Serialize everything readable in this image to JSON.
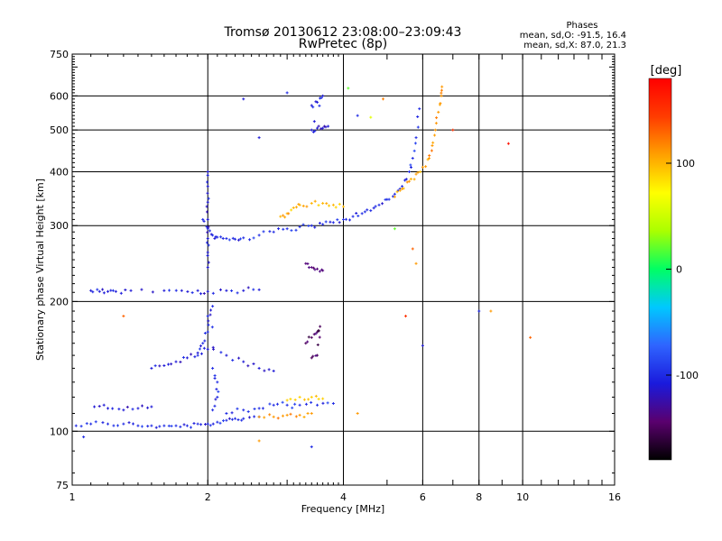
{
  "chart_data": {
    "type": "scatter",
    "title": "Tromsø 20130612 23:08:00–23:09:43",
    "subtitle": "RwPretec (8p)",
    "xlabel": "Frequency [MHz]",
    "ylabel": "Stationary phase Virtual Height [km]",
    "x_scale": "log",
    "y_scale": "log",
    "xlim": [
      1,
      16
    ],
    "ylim": [
      75,
      750
    ],
    "grid": true,
    "x_ticks": [
      "1",
      "2",
      "4",
      "6",
      "8",
      "10",
      "16"
    ],
    "y_ticks": [
      "75",
      "100",
      "200",
      "300",
      "400",
      "500",
      "600",
      "750"
    ],
    "stats": {
      "heading": "Phases",
      "line1": "mean, sd,O: -91.5, 16.4",
      "line2": "mean, sd,X:  87.0, 21.3"
    },
    "colorbar": {
      "unit": "[deg]",
      "range": [
        -180,
        180
      ],
      "ticks": [
        "100",
        "0",
        "-100"
      ],
      "colors": [
        "#000000",
        "#5a006e",
        "#1a1adc",
        "#2f64ff",
        "#00c8ff",
        "#00ff64",
        "#aaff00",
        "#ffff00",
        "#ffa000",
        "#ff3c00",
        "#ff0000"
      ]
    },
    "traces": [
      {
        "name": "",
        "phase": -100,
        "points": [
          [
            1.02,
            103
          ],
          [
            1.1,
            104
          ],
          [
            1.2,
            104
          ],
          [
            1.3,
            104
          ],
          [
            1.4,
            103
          ],
          [
            1.5,
            103
          ],
          [
            1.6,
            103
          ],
          [
            1.7,
            103
          ],
          [
            1.8,
            103
          ],
          [
            1.9,
            104
          ],
          [
            2.0,
            104
          ],
          [
            2.1,
            105
          ],
          [
            2.2,
            106
          ],
          [
            2.3,
            107
          ],
          [
            2.4,
            107
          ],
          [
            2.6,
            108
          ]
        ]
      },
      {
        "name": "",
        "phase": -110,
        "points": [
          [
            1.12,
            114
          ],
          [
            1.2,
            113
          ],
          [
            1.3,
            112
          ],
          [
            1.4,
            113
          ],
          [
            1.5,
            114
          ]
        ]
      },
      {
        "name": "",
        "phase": -110,
        "points": [
          [
            1.1,
            212
          ],
          [
            1.15,
            211
          ],
          [
            1.2,
            211
          ],
          [
            1.25,
            211
          ],
          [
            1.35,
            212
          ],
          [
            1.6,
            212
          ],
          [
            1.75,
            212
          ],
          [
            1.9,
            212
          ],
          [
            2.0,
            211
          ],
          [
            2.2,
            212
          ],
          [
            2.4,
            212
          ],
          [
            2.6,
            213
          ]
        ]
      },
      {
        "name": "",
        "phase": -100,
        "points": [
          [
            1.95,
            310
          ],
          [
            2.0,
            295
          ],
          [
            2.05,
            285
          ],
          [
            2.1,
            282
          ],
          [
            2.2,
            280
          ],
          [
            2.3,
            279
          ],
          [
            2.4,
            281
          ],
          [
            2.6,
            285
          ],
          [
            2.8,
            290
          ],
          [
            3.0,
            295
          ],
          [
            3.2,
            298
          ],
          [
            3.4,
            300
          ],
          [
            3.6,
            302
          ],
          [
            3.8,
            305
          ],
          [
            4.0,
            310
          ],
          [
            4.2,
            315
          ],
          [
            4.4,
            320
          ],
          [
            4.6,
            325
          ],
          [
            4.8,
            335
          ],
          [
            5.0,
            345
          ],
          [
            5.2,
            355
          ],
          [
            5.4,
            370
          ],
          [
            5.6,
            400
          ],
          [
            5.7,
            430
          ],
          [
            5.8,
            480
          ],
          [
            5.9,
            560
          ]
        ]
      },
      {
        "name": "",
        "phase": 100,
        "points": [
          [
            2.9,
            315
          ],
          [
            3.0,
            320
          ],
          [
            3.1,
            330
          ],
          [
            3.2,
            335
          ],
          [
            3.4,
            338
          ],
          [
            3.6,
            338
          ],
          [
            3.8,
            335
          ],
          [
            4.0,
            332
          ]
        ]
      },
      {
        "name": "",
        "phase": 110,
        "points": [
          [
            5.2,
            350
          ],
          [
            5.4,
            365
          ],
          [
            5.6,
            380
          ],
          [
            5.8,
            395
          ],
          [
            6.0,
            410
          ],
          [
            6.2,
            430
          ],
          [
            6.3,
            460
          ],
          [
            6.4,
            500
          ],
          [
            6.5,
            550
          ],
          [
            6.6,
            600
          ],
          [
            6.62,
            630
          ]
        ]
      },
      {
        "name": "",
        "phase": -110,
        "points": [
          [
            2.0,
            240
          ],
          [
            2.0,
            260
          ],
          [
            2.0,
            280
          ],
          [
            2.0,
            310
          ],
          [
            2.0,
            340
          ],
          [
            2.0,
            370
          ],
          [
            2.0,
            400
          ]
        ]
      },
      {
        "name": "",
        "phase": -100,
        "points": [
          [
            1.9,
            150
          ],
          [
            1.95,
            160
          ],
          [
            2.0,
            170
          ],
          [
            2.0,
            185
          ],
          [
            2.05,
            195
          ],
          [
            2.05,
            140
          ],
          [
            2.1,
            130
          ],
          [
            2.1,
            120
          ],
          [
            2.05,
            112
          ]
        ]
      },
      {
        "name": "",
        "phase": -110,
        "points": [
          [
            1.5,
            140
          ],
          [
            1.6,
            142
          ],
          [
            1.7,
            145
          ],
          [
            1.8,
            148
          ],
          [
            1.9,
            152
          ],
          [
            2.0,
            155
          ],
          [
            2.2,
            150
          ],
          [
            2.4,
            145
          ],
          [
            2.6,
            140
          ],
          [
            2.8,
            138
          ]
        ]
      },
      {
        "name": "",
        "phase": -100,
        "points": [
          [
            2.2,
            110
          ],
          [
            2.4,
            112
          ],
          [
            2.6,
            113
          ],
          [
            2.8,
            115
          ],
          [
            3.0,
            115
          ],
          [
            3.2,
            115
          ],
          [
            3.5,
            115
          ],
          [
            3.8,
            116
          ]
        ]
      },
      {
        "name": "",
        "phase": 110,
        "points": [
          [
            2.6,
            108
          ],
          [
            2.8,
            108
          ],
          [
            3.0,
            109
          ],
          [
            3.2,
            109
          ],
          [
            3.4,
            110
          ]
        ]
      },
      {
        "name": "",
        "phase": 90,
        "points": [
          [
            3.0,
            118
          ],
          [
            3.2,
            120
          ],
          [
            3.4,
            120
          ],
          [
            3.6,
            119
          ]
        ]
      },
      {
        "name": "",
        "phase": -150,
        "points": [
          [
            3.3,
            160
          ],
          [
            3.4,
            165
          ],
          [
            3.5,
            170
          ],
          [
            3.55,
            175
          ],
          [
            3.5,
            150
          ],
          [
            3.4,
            148
          ]
        ]
      },
      {
        "name": "",
        "phase": -110,
        "points": [
          [
            3.4,
            570
          ],
          [
            3.5,
            580
          ],
          [
            3.6,
            600
          ],
          [
            3.4,
            500
          ],
          [
            3.5,
            505
          ],
          [
            3.6,
            505
          ],
          [
            3.7,
            510
          ]
        ]
      },
      {
        "name": "",
        "phase": -140,
        "points": [
          [
            3.3,
            245
          ],
          [
            3.4,
            240
          ],
          [
            3.5,
            238
          ],
          [
            3.6,
            236
          ]
        ]
      }
    ],
    "scatter_points": [
      {
        "x": 2.4,
        "y": 590,
        "phase": -110
      },
      {
        "x": 2.6,
        "y": 480,
        "phase": -110
      },
      {
        "x": 3.0,
        "y": 610,
        "phase": -100
      },
      {
        "x": 4.1,
        "y": 625,
        "phase": 20
      },
      {
        "x": 4.3,
        "y": 540,
        "phase": -100
      },
      {
        "x": 4.6,
        "y": 535,
        "phase": 60
      },
      {
        "x": 4.9,
        "y": 590,
        "phase": 120
      },
      {
        "x": 7.0,
        "y": 500,
        "phase": 150
      },
      {
        "x": 9.3,
        "y": 465,
        "phase": 170
      },
      {
        "x": 1.3,
        "y": 185,
        "phase": 130
      },
      {
        "x": 5.7,
        "y": 265,
        "phase": 130
      },
      {
        "x": 6.0,
        "y": 158,
        "phase": -110
      },
      {
        "x": 8.0,
        "y": 190,
        "phase": -100
      },
      {
        "x": 8.5,
        "y": 190,
        "phase": 110
      },
      {
        "x": 10.4,
        "y": 165,
        "phase": 130
      },
      {
        "x": 5.5,
        "y": 185,
        "phase": 150
      },
      {
        "x": 2.6,
        "y": 95,
        "phase": 110
      },
      {
        "x": 3.4,
        "y": 92,
        "phase": -100
      },
      {
        "x": 1.06,
        "y": 97,
        "phase": -100
      },
      {
        "x": 4.3,
        "y": 110,
        "phase": 110
      },
      {
        "x": 5.8,
        "y": 245,
        "phase": 110
      },
      {
        "x": 5.2,
        "y": 295,
        "phase": 20
      }
    ]
  }
}
